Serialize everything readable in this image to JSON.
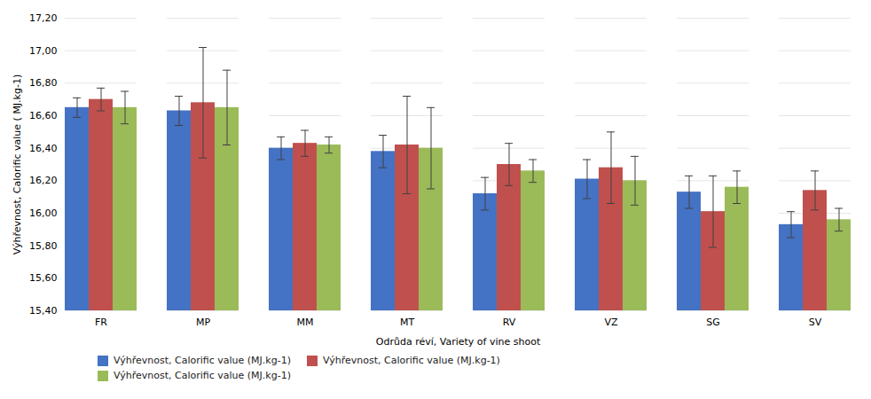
{
  "chart_data": {
    "type": "bar",
    "categories": [
      "FR",
      "MP",
      "MM",
      "MT",
      "RV",
      "VZ",
      "SG",
      "SV"
    ],
    "series": [
      {
        "name": "Výhřevnost, Calorific value (MJ.kg-1)",
        "color": "#4472C4",
        "values": [
          16.65,
          16.63,
          16.4,
          16.38,
          16.12,
          16.21,
          16.13,
          15.93
        ],
        "errors": [
          0.06,
          0.09,
          0.07,
          0.1,
          0.1,
          0.12,
          0.1,
          0.08
        ]
      },
      {
        "name": "Výhřevnost, Calorific value (MJ.kg-1)",
        "color": "#C0504D",
        "values": [
          16.7,
          16.68,
          16.43,
          16.42,
          16.3,
          16.28,
          16.01,
          16.14
        ],
        "errors": [
          0.07,
          0.34,
          0.08,
          0.3,
          0.13,
          0.22,
          0.22,
          0.12
        ]
      },
      {
        "name": "Výhřevnost, Calorific value (MJ.kg-1)",
        "color": "#9BBB59",
        "values": [
          16.65,
          16.65,
          16.42,
          16.4,
          16.26,
          16.2,
          16.16,
          15.96
        ],
        "errors": [
          0.1,
          0.23,
          0.05,
          0.25,
          0.07,
          0.15,
          0.1,
          0.07
        ]
      }
    ],
    "xlabel": "Odrůda réví, Variety of vine shoot",
    "ylabel": "Výhřevnost, Calorific value ( MJ.kg-1)",
    "ylim": [
      15.4,
      17.2
    ],
    "yticks": [
      {
        "value": 15.4,
        "label": "15,40"
      },
      {
        "value": 15.6,
        "label": "15,60"
      },
      {
        "value": 15.8,
        "label": "15,80"
      },
      {
        "value": 16.0,
        "label": "16,00"
      },
      {
        "value": 16.2,
        "label": "16,20"
      },
      {
        "value": 16.4,
        "label": "16,40"
      },
      {
        "value": 16.6,
        "label": "16,60"
      },
      {
        "value": 16.8,
        "label": "16,80"
      },
      {
        "value": 17.0,
        "label": "17,00"
      },
      {
        "value": 17.2,
        "label": "17,20"
      }
    ],
    "grid": true,
    "legend": "bottom"
  }
}
